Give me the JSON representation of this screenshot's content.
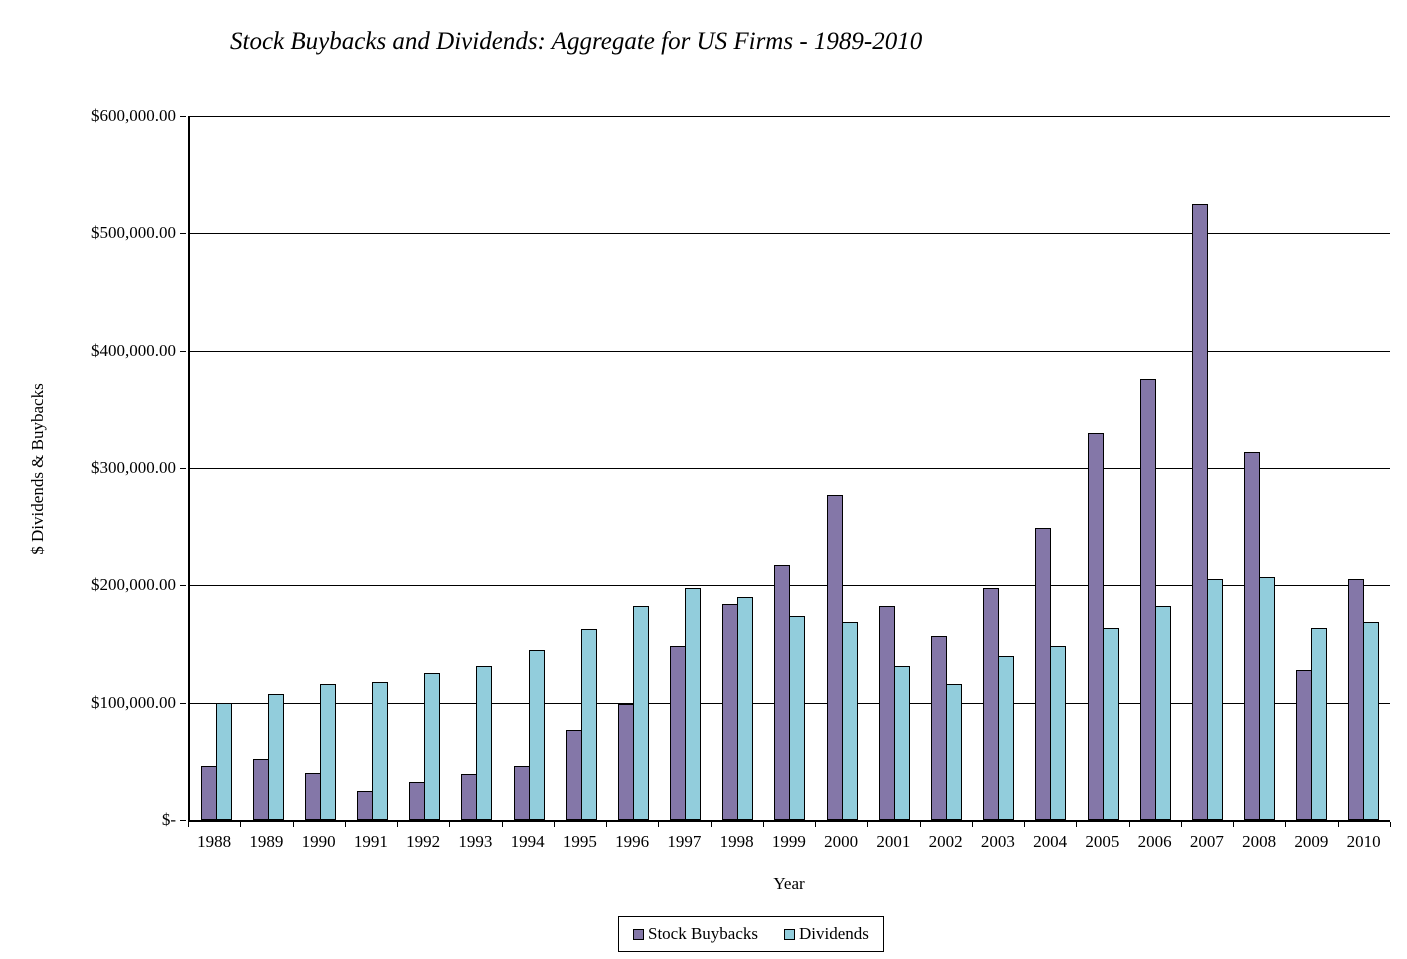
{
  "chart_data": {
    "type": "bar",
    "title": "Stock Buybacks and Dividends: Aggregate for US Firms - 1989-2010",
    "xlabel": "Year",
    "ylabel": "$ Dividends & Buybacks",
    "ylim": [
      0,
      600000
    ],
    "grid": true,
    "legend_position": "bottom",
    "background_color": "#ffffff",
    "axis_color": "#000000",
    "y_ticks": [
      {
        "value": 0,
        "label": "$-"
      },
      {
        "value": 100000,
        "label": "$100,000.00"
      },
      {
        "value": 200000,
        "label": "$200,000.00"
      },
      {
        "value": 300000,
        "label": "$300,000.00"
      },
      {
        "value": 400000,
        "label": "$400,000.00"
      },
      {
        "value": 500000,
        "label": "$500,000.00"
      },
      {
        "value": 600000,
        "label": "$600,000.00"
      }
    ],
    "categories": [
      "1988",
      "1989",
      "1990",
      "1991",
      "1992",
      "1993",
      "1994",
      "1995",
      "1996",
      "1997",
      "1998",
      "1999",
      "2000",
      "2001",
      "2002",
      "2003",
      "2004",
      "2005",
      "2006",
      "2007",
      "2008",
      "2009",
      "2010"
    ],
    "series": [
      {
        "name": "Stock Buybacks",
        "color": "#8477A8",
        "border_color": "#000000",
        "values": [
          46000,
          52000,
          40000,
          25000,
          32000,
          39000,
          46000,
          77000,
          99000,
          148000,
          184000,
          217000,
          277000,
          182000,
          157000,
          198000,
          249000,
          330000,
          376000,
          525000,
          314000,
          128000,
          205000
        ]
      },
      {
        "name": "Dividends",
        "color": "#92CDDC",
        "border_color": "#000000",
        "values": [
          100000,
          107000,
          116000,
          118000,
          125000,
          131000,
          145000,
          163000,
          182000,
          198000,
          190000,
          174000,
          169000,
          131000,
          116000,
          140000,
          148000,
          164000,
          182000,
          205000,
          207000,
          164000,
          169000
        ]
      }
    ]
  }
}
